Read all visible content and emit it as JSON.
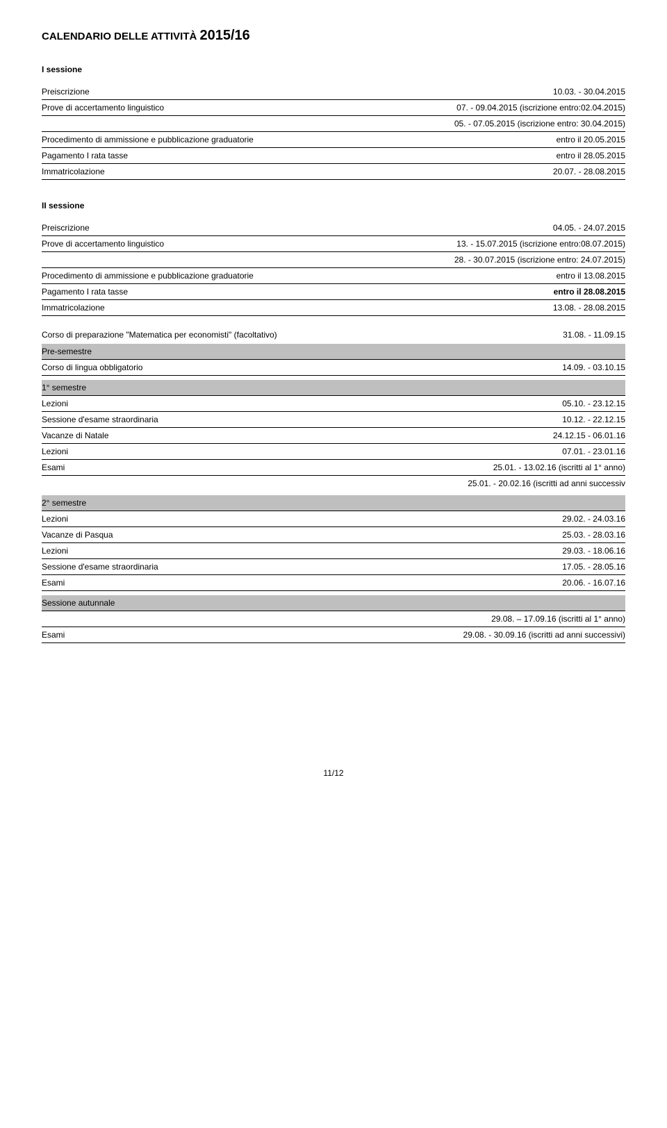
{
  "title_part1": "CALENDARIO DELLE ATTIVITÀ ",
  "title_part2": "2015/16",
  "session1": {
    "heading": "I sessione",
    "rows": [
      {
        "label": "Preiscrizione",
        "value": "10.03. - 30.04.2015"
      },
      {
        "label": "Prove di accertamento linguistico",
        "value": "07. - 09.04.2015 (iscrizione entro:02.04.2015)"
      },
      {
        "label": "",
        "value": "05. - 07.05.2015 (iscrizione entro: 30.04.2015)"
      },
      {
        "label": "Procedimento di ammissione e pubblicazione graduatorie",
        "value": "entro il 20.05.2015"
      },
      {
        "label": "Pagamento I rata tasse",
        "value": "entro il 28.05.2015"
      },
      {
        "label": "Immatricolazione",
        "value": "20.07. - 28.08.2015"
      }
    ]
  },
  "session2": {
    "heading": "II sessione",
    "rows": [
      {
        "label": "Preiscrizione",
        "value": "04.05. - 24.07.2015"
      },
      {
        "label": "Prove di accertamento linguistico",
        "value": "13. - 15.07.2015 (iscrizione entro:08.07.2015)"
      },
      {
        "label": "",
        "value": "28. - 30.07.2015 (iscrizione entro: 24.07.2015)"
      },
      {
        "label": "Procedimento di ammissione e pubblicazione graduatorie",
        "value": "entro il 13.08.2015"
      },
      {
        "label": "Pagamento I rata tasse",
        "value": "entro il 28.08.2015",
        "bold": true
      },
      {
        "label": "Immatricolazione",
        "value": "13.08. - 28.08.2015"
      }
    ]
  },
  "prep": {
    "label": "Corso di preparazione \"Matematica per economisti\" (facoltativo)",
    "value": "31.08. - 11.09.15"
  },
  "presemestre": {
    "header": "Pre-semestre",
    "rows": [
      {
        "label": "Corso di lingua obbligatorio",
        "value": "14.09. - 03.10.15"
      }
    ]
  },
  "sem1": {
    "header": "1° semestre",
    "rows": [
      {
        "label": "Lezioni",
        "value": "05.10. - 23.12.15"
      },
      {
        "label": "Sessione d'esame straordinaria",
        "value": "10.12. - 22.12.15"
      },
      {
        "label": "Vacanze di Natale",
        "value": "24.12.15 - 06.01.16"
      },
      {
        "label": "Lezioni",
        "value": "07.01. - 23.01.16"
      },
      {
        "label": "Esami",
        "value": "25.01. - 13.02.16 (iscritti al 1° anno)"
      },
      {
        "label": "",
        "value": "25.01. - 20.02.16 (iscritti ad anni successiv",
        "noborder": true
      }
    ]
  },
  "sem2": {
    "header": "2° semestre",
    "rows": [
      {
        "label": "Lezioni",
        "value": "29.02. - 24.03.16"
      },
      {
        "label": "Vacanze di Pasqua",
        "value": "25.03. - 28.03.16"
      },
      {
        "label": "Lezioni",
        "value": "29.03. - 18.06.16"
      },
      {
        "label": "Sessione d'esame straordinaria",
        "value": "17.05. - 28.05.16"
      },
      {
        "label": "Esami",
        "value": "20.06. - 16.07.16"
      }
    ]
  },
  "autumn": {
    "header": "Sessione autunnale",
    "rows": [
      {
        "label": "",
        "value": "29.08. – 17.09.16 (iscritti al 1° anno)"
      },
      {
        "label": "Esami",
        "value": "29.08. - 30.09.16 (iscritti ad anni successivi)"
      }
    ]
  },
  "footer": "11/12"
}
